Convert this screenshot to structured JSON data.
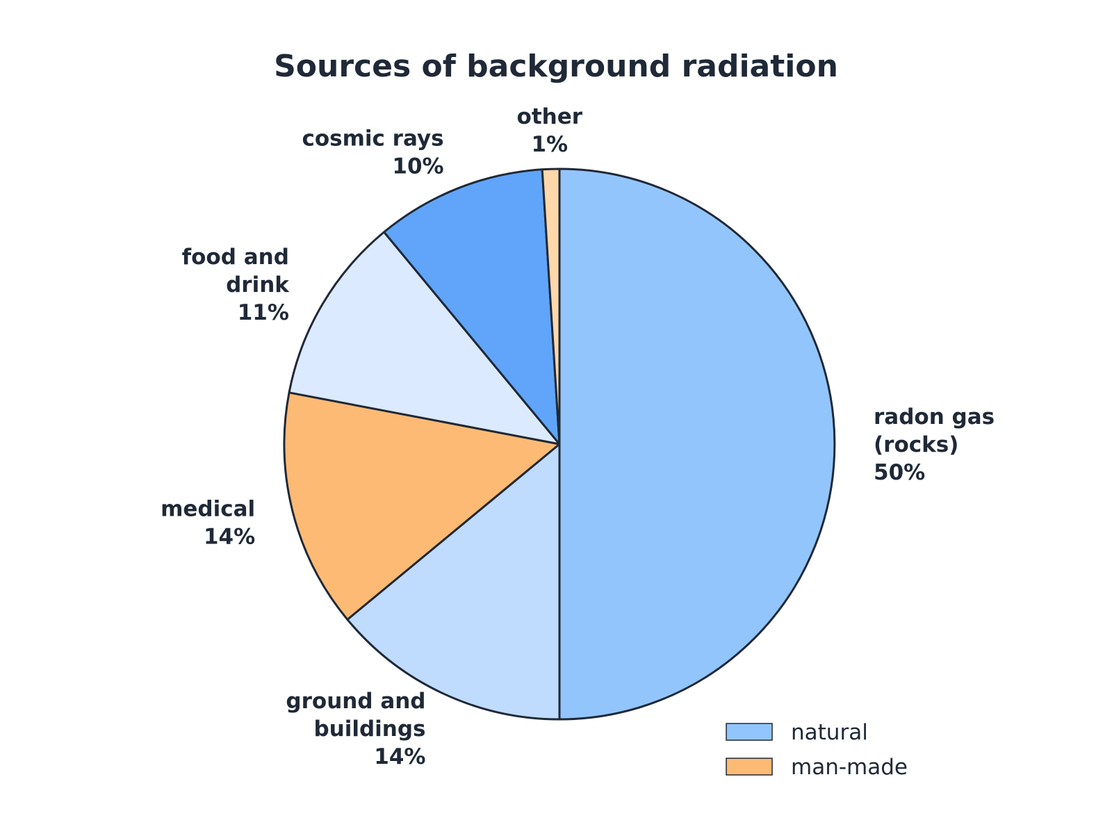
{
  "chart_data": {
    "type": "pie",
    "title": "Sources of background radiation",
    "start": "12 o'clock",
    "direction": "clockwise",
    "slices": [
      {
        "label": "radon gas (rocks)",
        "label_lines": [
          "radon gas",
          "(rocks)"
        ],
        "value": 50,
        "value_label": "50%",
        "group": "natural",
        "color": "#93c5fd"
      },
      {
        "label": "ground and buildings",
        "label_lines": [
          "ground and",
          "buildings"
        ],
        "value": 14,
        "value_label": "14%",
        "group": "natural",
        "color": "#bfdbfe"
      },
      {
        "label": "medical",
        "label_lines": [
          "medical"
        ],
        "value": 14,
        "value_label": "14%",
        "group": "man-made",
        "color": "#fdba74"
      },
      {
        "label": "food and drink",
        "label_lines": [
          "food and",
          "drink"
        ],
        "value": 11,
        "value_label": "11%",
        "group": "natural",
        "color": "#dbeafe"
      },
      {
        "label": "cosmic rays",
        "label_lines": [
          "cosmic rays"
        ],
        "value": 10,
        "value_label": "10%",
        "group": "natural",
        "color": "#60a5fa"
      },
      {
        "label": "other",
        "label_lines": [
          "other"
        ],
        "value": 1,
        "value_label": "1%",
        "group": "man-made",
        "color": "#fed7aa"
      }
    ],
    "legend": {
      "placement": "bottom-right",
      "entries": [
        {
          "name": "natural",
          "color": "#93c5fd"
        },
        {
          "name": "man-made",
          "color": "#fdba74"
        }
      ]
    },
    "colors": {
      "stroke": "#1f2937",
      "text": "#1f2937"
    }
  }
}
